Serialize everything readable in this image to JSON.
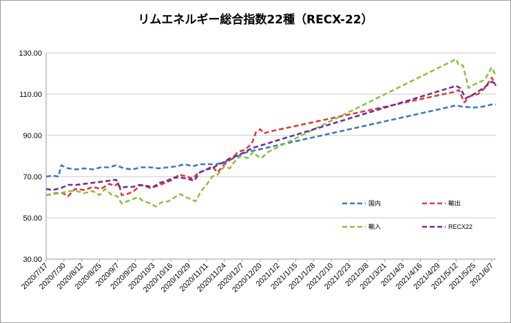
{
  "chart_data": {
    "type": "line",
    "title": "リムエネルギー総合指数22種（RECX-22）",
    "xlabel": "",
    "ylabel": "",
    "ylim": [
      30,
      130
    ],
    "yticks": [
      "30.00",
      "50.00",
      "70.00",
      "90.00",
      "110.00",
      "130.00"
    ],
    "x_start": "2020/7/17",
    "x_end": "2021/6/10",
    "xticks": [
      "2020/7/17",
      "2020/7/30",
      "2020/8/12",
      "2020/8/25",
      "2020/9/7",
      "2020/9/20",
      "2020/10/3",
      "2020/10/16",
      "2020/10/29",
      "2020/11/11",
      "2020/11/24",
      "2020/12/7",
      "2020/12/20",
      "2021/1/2",
      "2021/1/15",
      "2021/1/28",
      "2021/2/10",
      "2021/2/23",
      "2021/3/8",
      "2021/3/21",
      "2021/4/3",
      "2021/4/16",
      "2021/4/29",
      "2021/5/12",
      "2021/5/25",
      "2021/6/7"
    ],
    "grid": "horizontal",
    "legend_position": "lower-right",
    "series": [
      {
        "name": "国内",
        "color": "#3a78c2",
        "points": [
          [
            "2020/7/17",
            70
          ],
          [
            "2020/7/22",
            70.5
          ],
          [
            "2020/7/26",
            70
          ],
          [
            "2020/7/28",
            75.5
          ],
          [
            "2020/8/2",
            74
          ],
          [
            "2020/8/8",
            73.5
          ],
          [
            "2020/8/14",
            74
          ],
          [
            "2020/8/20",
            73.5
          ],
          [
            "2020/8/26",
            74.5
          ],
          [
            "2020/9/1",
            74.5
          ],
          [
            "2020/9/6",
            75.5
          ],
          [
            "2020/9/12",
            74
          ],
          [
            "2020/9/18",
            73.5
          ],
          [
            "2020/9/24",
            74.5
          ],
          [
            "2020/10/1",
            74.5
          ],
          [
            "2020/10/7",
            74
          ],
          [
            "2020/10/14",
            74.5
          ],
          [
            "2020/10/20",
            75
          ],
          [
            "2020/10/26",
            76
          ],
          [
            "2020/11/1",
            75
          ],
          [
            "2020/11/6",
            76
          ],
          [
            "2020/11/12",
            76
          ],
          [
            "2020/11/18",
            76
          ],
          [
            "2020/11/24",
            77
          ],
          [
            "2020/12/1",
            79
          ],
          [
            "2020/12/7",
            81
          ],
          [
            "2020/12/11",
            82
          ],
          [
            "2020/12/18",
            83
          ],
          [
            "2021/5/12",
            104.5
          ],
          [
            "2021/5/16",
            104
          ],
          [
            "2021/5/25",
            103.5
          ],
          [
            "2021/6/1",
            104
          ],
          [
            "2021/6/7",
            105
          ],
          [
            "2021/6/10",
            105
          ]
        ]
      },
      {
        "name": "輸出",
        "color": "#e03a36",
        "points": [
          [
            "2020/7/17",
            61
          ],
          [
            "2020/7/24",
            62
          ],
          [
            "2020/7/29",
            62
          ],
          [
            "2020/8/2",
            60.5
          ],
          [
            "2020/8/7",
            64
          ],
          [
            "2020/8/14",
            63.5
          ],
          [
            "2020/8/20",
            65
          ],
          [
            "2020/8/26",
            64
          ],
          [
            "2020/9/1",
            66.5
          ],
          [
            "2020/9/5",
            65.5
          ],
          [
            "2020/9/8",
            67
          ],
          [
            "2020/9/10",
            61
          ],
          [
            "2020/9/14",
            61.5
          ],
          [
            "2020/9/19",
            63
          ],
          [
            "2020/9/24",
            66
          ],
          [
            "2020/10/1",
            64.5
          ],
          [
            "2020/10/6",
            65.5
          ],
          [
            "2020/10/12",
            67
          ],
          [
            "2020/10/17",
            68.5
          ],
          [
            "2020/10/22",
            71
          ],
          [
            "2020/10/28",
            70
          ],
          [
            "2020/11/1",
            69
          ],
          [
            "2020/11/5",
            72
          ],
          [
            "2020/11/10",
            73
          ],
          [
            "2020/11/15",
            75
          ],
          [
            "2020/11/19",
            72
          ],
          [
            "2020/11/24",
            76
          ],
          [
            "2020/11/30",
            79
          ],
          [
            "2020/12/4",
            82
          ],
          [
            "2020/12/9",
            83
          ],
          [
            "2020/12/14",
            86
          ],
          [
            "2020/12/17",
            91.5
          ],
          [
            "2020/12/20",
            93
          ],
          [
            "2020/12/23",
            91
          ],
          [
            "2020/12/28",
            92
          ],
          [
            "2021/5/10",
            111
          ],
          [
            "2021/5/14",
            112
          ],
          [
            "2021/5/18",
            106
          ],
          [
            "2021/5/22",
            109
          ],
          [
            "2021/5/28",
            110
          ],
          [
            "2021/6/2",
            113
          ],
          [
            "2021/6/7",
            118
          ],
          [
            "2021/6/10",
            114
          ]
        ]
      },
      {
        "name": "輸入",
        "color": "#8fc13e",
        "points": [
          [
            "2020/7/17",
            61
          ],
          [
            "2020/7/22",
            61.5
          ],
          [
            "2020/7/28",
            62
          ],
          [
            "2020/8/2",
            63
          ],
          [
            "2020/8/8",
            63
          ],
          [
            "2020/8/14",
            62
          ],
          [
            "2020/8/20",
            63
          ],
          [
            "2020/8/25",
            61
          ],
          [
            "2020/8/29",
            64
          ],
          [
            "2020/9/3",
            61
          ],
          [
            "2020/9/7",
            60.5
          ],
          [
            "2020/9/10",
            57
          ],
          [
            "2020/9/14",
            58
          ],
          [
            "2020/9/18",
            59
          ],
          [
            "2020/9/22",
            60
          ],
          [
            "2020/9/26",
            58
          ],
          [
            "2020/10/1",
            57
          ],
          [
            "2020/10/5",
            55.5
          ],
          [
            "2020/10/9",
            57.5
          ],
          [
            "2020/10/14",
            58
          ],
          [
            "2020/10/19",
            60
          ],
          [
            "2020/10/23",
            61.5
          ],
          [
            "2020/10/27",
            60
          ],
          [
            "2020/10/31",
            59
          ],
          [
            "2020/11/3",
            58
          ],
          [
            "2020/11/7",
            63
          ],
          [
            "2020/11/11",
            66
          ],
          [
            "2020/11/15",
            70
          ],
          [
            "2020/11/19",
            71
          ],
          [
            "2020/11/24",
            75
          ],
          [
            "2020/11/28",
            74
          ],
          [
            "2020/12/1",
            77
          ],
          [
            "2020/12/6",
            80
          ],
          [
            "2020/12/11",
            79
          ],
          [
            "2020/12/15",
            82
          ],
          [
            "2020/12/18",
            80
          ],
          [
            "2020/12/21",
            79
          ],
          [
            "2020/12/26",
            82
          ],
          [
            "2021/5/12",
            127
          ],
          [
            "2021/5/14",
            124
          ],
          [
            "2021/5/17",
            124
          ],
          [
            "2021/5/21",
            113
          ],
          [
            "2021/5/26",
            115
          ],
          [
            "2021/6/2",
            117
          ],
          [
            "2021/6/7",
            123
          ],
          [
            "2021/6/10",
            119
          ]
        ]
      },
      {
        "name": "RECX22",
        "color": "#6a2c9e",
        "points": [
          [
            "2020/7/17",
            64
          ],
          [
            "2020/7/22",
            63.5
          ],
          [
            "2020/7/28",
            64.5
          ],
          [
            "2020/8/2",
            66
          ],
          [
            "2020/8/8",
            66
          ],
          [
            "2020/8/14",
            66.5
          ],
          [
            "2020/8/20",
            67
          ],
          [
            "2020/8/26",
            67.5
          ],
          [
            "2020/9/1",
            68
          ],
          [
            "2020/9/6",
            68.5
          ],
          [
            "2020/9/9",
            64.5
          ],
          [
            "2020/9/13",
            65
          ],
          [
            "2020/9/18",
            65
          ],
          [
            "2020/9/23",
            66
          ],
          [
            "2020/9/28",
            65.5
          ],
          [
            "2020/10/3",
            65
          ],
          [
            "2020/10/8",
            67
          ],
          [
            "2020/10/13",
            68
          ],
          [
            "2020/10/18",
            69.5
          ],
          [
            "2020/10/23",
            69.5
          ],
          [
            "2020/10/28",
            69
          ],
          [
            "2020/11/2",
            68
          ],
          [
            "2020/11/6",
            72
          ],
          [
            "2020/11/11",
            73.5
          ],
          [
            "2020/11/15",
            74
          ],
          [
            "2020/11/20",
            76
          ],
          [
            "2020/11/24",
            77
          ],
          [
            "2020/11/28",
            79
          ],
          [
            "2020/12/3",
            80
          ],
          [
            "2020/12/9",
            82
          ],
          [
            "2020/12/15",
            84
          ],
          [
            "2020/12/20",
            85
          ],
          [
            "2021/5/12",
            114
          ],
          [
            "2021/5/15",
            113
          ],
          [
            "2021/5/19",
            108
          ],
          [
            "2021/5/25",
            110
          ],
          [
            "2021/6/1",
            113
          ],
          [
            "2021/6/7",
            116
          ],
          [
            "2021/6/10",
            115
          ]
        ]
      }
    ]
  }
}
